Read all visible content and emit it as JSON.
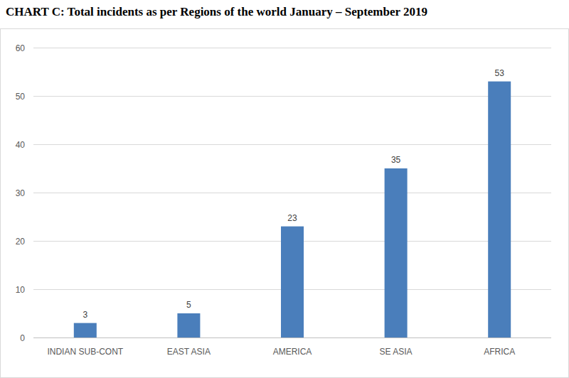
{
  "chart_data": {
    "type": "bar",
    "title": "CHART C: Total incidents as per Regions of the world January – September 2019",
    "categories": [
      "INDIAN SUB-CONT",
      "EAST ASIA",
      "AMERICA",
      "SE ASIA",
      "AFRICA"
    ],
    "values": [
      3,
      5,
      23,
      35,
      53
    ],
    "color": "#4a7ebb",
    "ylim": [
      0,
      60
    ],
    "yticks": [
      0,
      10,
      20,
      30,
      40,
      50,
      60
    ],
    "grid": true,
    "data_labels": true
  }
}
